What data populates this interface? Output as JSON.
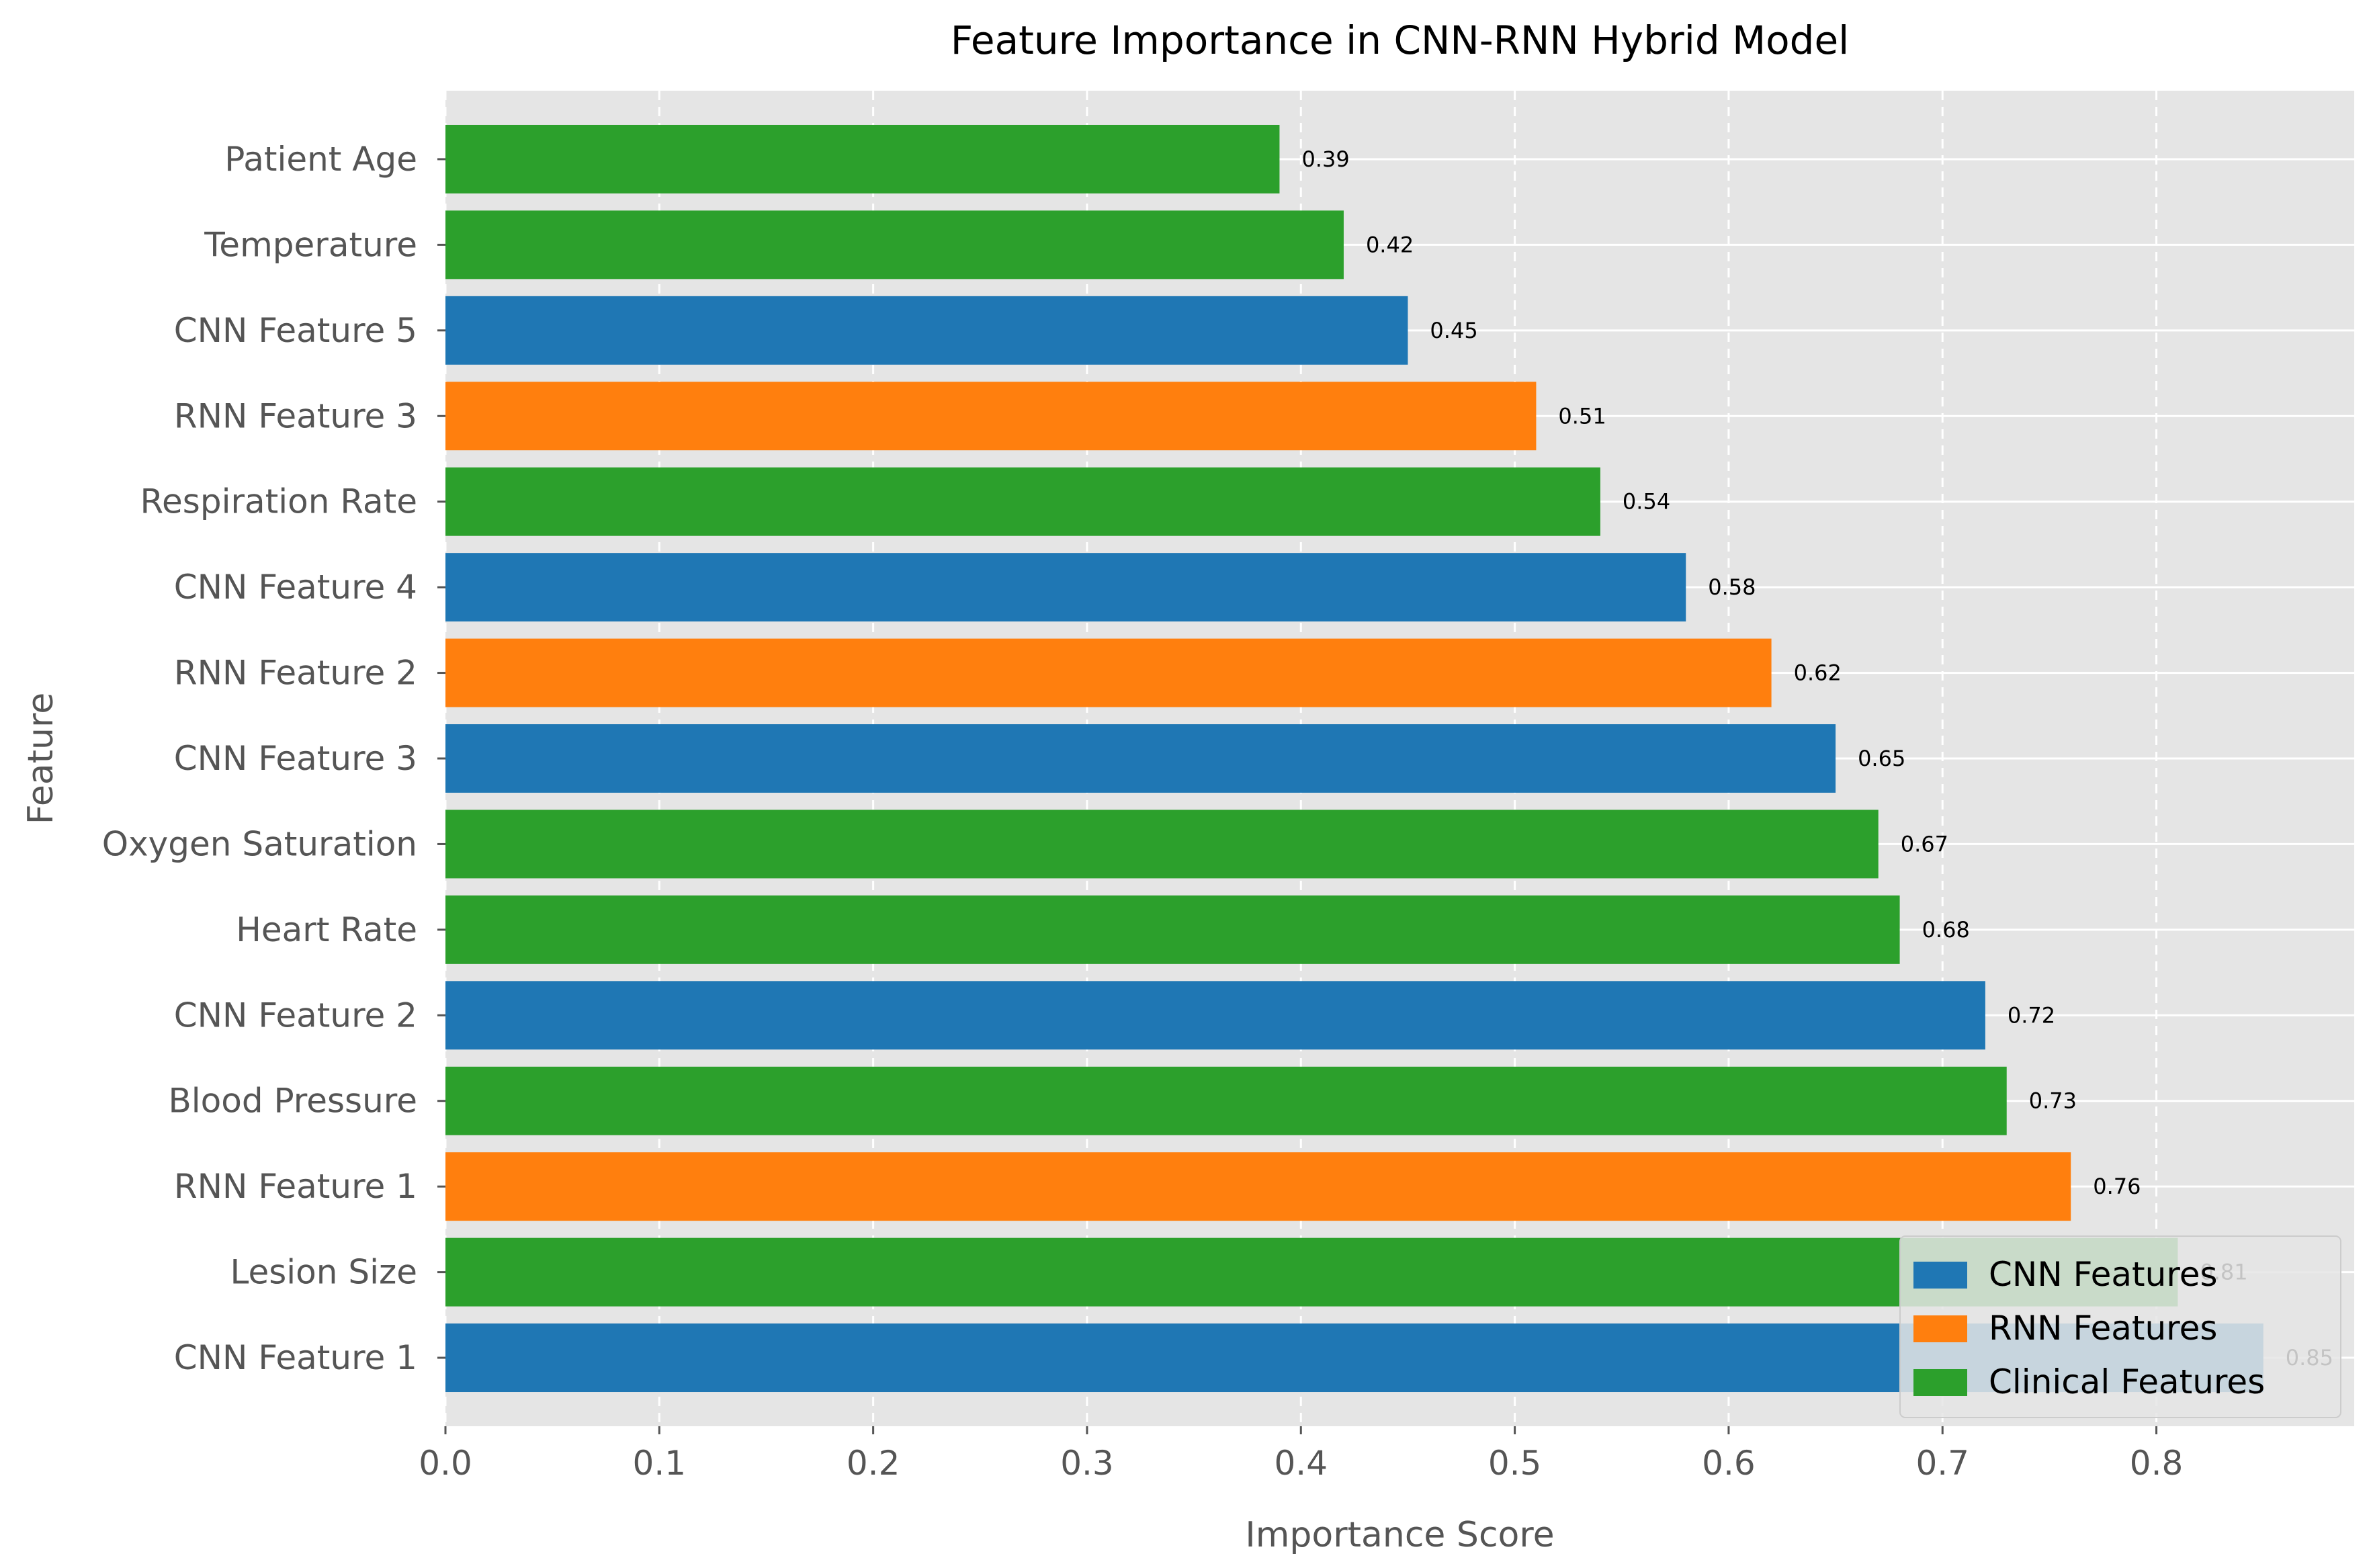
{
  "chart_data": {
    "type": "bar",
    "orientation": "horizontal",
    "title": "Feature Importance in CNN-RNN Hybrid Model",
    "xlabel": "Importance Score",
    "ylabel": "Feature",
    "xlim": [
      0,
      0.8925
    ],
    "xticks": [
      "0.0",
      "0.1",
      "0.2",
      "0.3",
      "0.4",
      "0.5",
      "0.6",
      "0.7",
      "0.8"
    ],
    "grid": true,
    "legend_position": "lower right",
    "categories": [
      "Patient Age",
      "Temperature",
      "CNN Feature 5",
      "RNN Feature 3",
      "Respiration Rate",
      "CNN Feature 4",
      "RNN Feature 2",
      "CNN Feature 3",
      "Oxygen Saturation",
      "Heart Rate",
      "CNN Feature 2",
      "Blood Pressure",
      "RNN Feature 1",
      "Lesion Size",
      "CNN Feature 1"
    ],
    "values": [
      0.39,
      0.42,
      0.45,
      0.51,
      0.54,
      0.58,
      0.62,
      0.65,
      0.67,
      0.68,
      0.72,
      0.73,
      0.76,
      0.81,
      0.85
    ],
    "data_labels": [
      "0.39",
      "0.42",
      "0.45",
      "0.51",
      "0.54",
      "0.58",
      "0.62",
      "0.65",
      "0.67",
      "0.68",
      "0.72",
      "0.73",
      "0.76",
      "0.81",
      "0.85"
    ],
    "groups": [
      "clinical",
      "clinical",
      "cnn",
      "rnn",
      "clinical",
      "cnn",
      "rnn",
      "cnn",
      "clinical",
      "clinical",
      "cnn",
      "clinical",
      "rnn",
      "clinical",
      "cnn"
    ],
    "series": [
      {
        "key": "cnn",
        "name": "CNN Features",
        "color": "#1f77b4"
      },
      {
        "key": "rnn",
        "name": "RNN Features",
        "color": "#ff7f0e"
      },
      {
        "key": "clinical",
        "name": "Clinical Features",
        "color": "#2ca02c"
      }
    ],
    "colors": {
      "plot_background": "#e5e5e5",
      "grid": "#ffffff"
    }
  }
}
